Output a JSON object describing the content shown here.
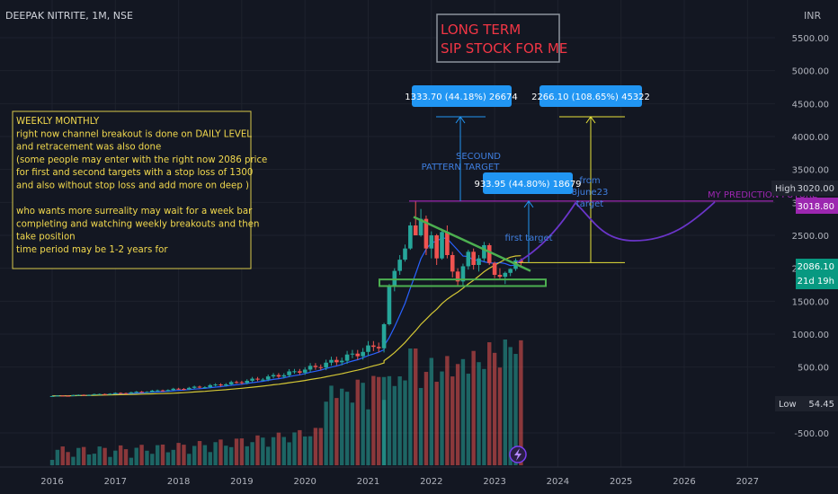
{
  "header": {
    "title": "DEEPAK NITRITE, 1M, NSE",
    "currency": "INR"
  },
  "colors": {
    "bg": "#131722",
    "grid": "#1e222d",
    "axis_text": "#b2b5be",
    "up": "#26a69a",
    "down": "#ef5350",
    "ma_fast": "#2962ff",
    "ma_slow": "#d4c735",
    "projection": "#6a35c9",
    "level": "#9c27b0",
    "note_text": "#f2d94e",
    "green_line": "#4caf50",
    "blue_label": "#2196f3"
  },
  "chart_data": {
    "type": "candlestick",
    "title": "DEEPAK NITRITE, 1M, NSE",
    "ylim": [
      -800,
      5800
    ],
    "xlim": [
      2015.55,
      2027.9
    ],
    "y_ticks": [
      "5500.00",
      "5000.00",
      "4500.00",
      "4000.00",
      "3500.00",
      "3000.00",
      "2500.00",
      "2000.00",
      "1500.00",
      "1000.00",
      "500.00",
      "-500.00"
    ],
    "x_ticks": [
      "2016",
      "2017",
      "2018",
      "2019",
      "2020",
      "2021",
      "2022",
      "2023",
      "2024",
      "2025",
      "2026",
      "2027"
    ],
    "price_labels": {
      "high": {
        "label": "High",
        "value": "3020.00"
      },
      "level": {
        "value": "3018.80"
      },
      "last": {
        "value": "2086.10",
        "countdown": "21d 19h"
      },
      "low": {
        "label": "Low",
        "value": "54.45"
      }
    },
    "candles_recent": [
      {
        "t": "2021-04",
        "o": 880,
        "h": 1170,
        "l": 860,
        "c": 1150
      },
      {
        "t": "2021-05",
        "o": 1150,
        "h": 1760,
        "l": 1130,
        "c": 1720
      },
      {
        "t": "2021-06",
        "o": 1720,
        "h": 2000,
        "l": 1650,
        "c": 1960
      },
      {
        "t": "2021-07",
        "o": 1960,
        "h": 2200,
        "l": 1900,
        "c": 2130
      },
      {
        "t": "2021-08",
        "o": 2130,
        "h": 2360,
        "l": 2100,
        "c": 2300
      },
      {
        "t": "2021-09",
        "o": 2300,
        "h": 2700,
        "l": 2280,
        "c": 2650
      },
      {
        "t": "2021-10",
        "o": 2650,
        "h": 3020,
        "l": 2620,
        "c": 2500
      },
      {
        "t": "2021-11",
        "o": 2500,
        "h": 2900,
        "l": 2480,
        "c": 2750
      },
      {
        "t": "2021-12",
        "o": 2750,
        "h": 2800,
        "l": 2200,
        "c": 2300
      },
      {
        "t": "2022-01",
        "o": 2300,
        "h": 2560,
        "l": 2150,
        "c": 2500
      },
      {
        "t": "2022-02",
        "o": 2500,
        "h": 2520,
        "l": 2050,
        "c": 2150
      },
      {
        "t": "2022-03",
        "o": 2150,
        "h": 2600,
        "l": 2130,
        "c": 2550
      },
      {
        "t": "2022-04",
        "o": 2550,
        "h": 2650,
        "l": 2150,
        "c": 2200
      },
      {
        "t": "2022-05",
        "o": 2200,
        "h": 2250,
        "l": 1860,
        "c": 1950
      },
      {
        "t": "2022-06",
        "o": 1950,
        "h": 2000,
        "l": 1720,
        "c": 1800
      },
      {
        "t": "2022-07",
        "o": 1800,
        "h": 2070,
        "l": 1720,
        "c": 2030
      },
      {
        "t": "2022-08",
        "o": 2030,
        "h": 2280,
        "l": 1980,
        "c": 2250
      },
      {
        "t": "2022-09",
        "o": 2250,
        "h": 2300,
        "l": 1980,
        "c": 2050
      },
      {
        "t": "2022-10",
        "o": 2050,
        "h": 2200,
        "l": 1950,
        "c": 2150
      },
      {
        "t": "2022-11",
        "o": 2150,
        "h": 2400,
        "l": 2100,
        "c": 2350
      },
      {
        "t": "2022-12",
        "o": 2350,
        "h": 2380,
        "l": 2050,
        "c": 2080
      },
      {
        "t": "2023-01",
        "o": 2080,
        "h": 2100,
        "l": 1850,
        "c": 1900
      },
      {
        "t": "2023-02",
        "o": 1900,
        "h": 2000,
        "l": 1820,
        "c": 1870
      },
      {
        "t": "2023-03",
        "o": 1870,
        "h": 1950,
        "l": 1760,
        "c": 1930
      },
      {
        "t": "2023-04",
        "o": 1930,
        "h": 2000,
        "l": 1880,
        "c": 1990
      },
      {
        "t": "2023-05",
        "o": 1990,
        "h": 2150,
        "l": 1960,
        "c": 2120
      },
      {
        "t": "2023-06",
        "o": 2120,
        "h": 2150,
        "l": 2040,
        "c": 2086
      }
    ]
  },
  "annotations": {
    "headline": [
      "LONG TERM",
      "SIP STOCK FOR ME"
    ],
    "note_lines": [
      "WEEKLY MONTHLY",
      "right now channel breakout is done on DAILY LEVEL",
      "and retracement was also done",
      "(some people may enter with the right now 2086 price",
      "for first and second targets with a stop loss of 1300",
      "and also without stop loss and add more on deep )",
      "",
      "who wants more surreality may wait for a week bar",
      "completing and watching weekly breakouts and then",
      "take position",
      "time period may be 1-2 years for"
    ],
    "measure1": "1333.70 (44.18%) 26674",
    "measure2": "2266.10 (108.65%) 45322",
    "measure3": "933.95 (44.80%) 18679",
    "second_target": [
      "SECOUND",
      "PATTERN TARGET"
    ],
    "first_target": "first target",
    "from_text": [
      "from",
      "8june23",
      "target"
    ],
    "prediction": "MY PREDICTION FUTURE"
  }
}
